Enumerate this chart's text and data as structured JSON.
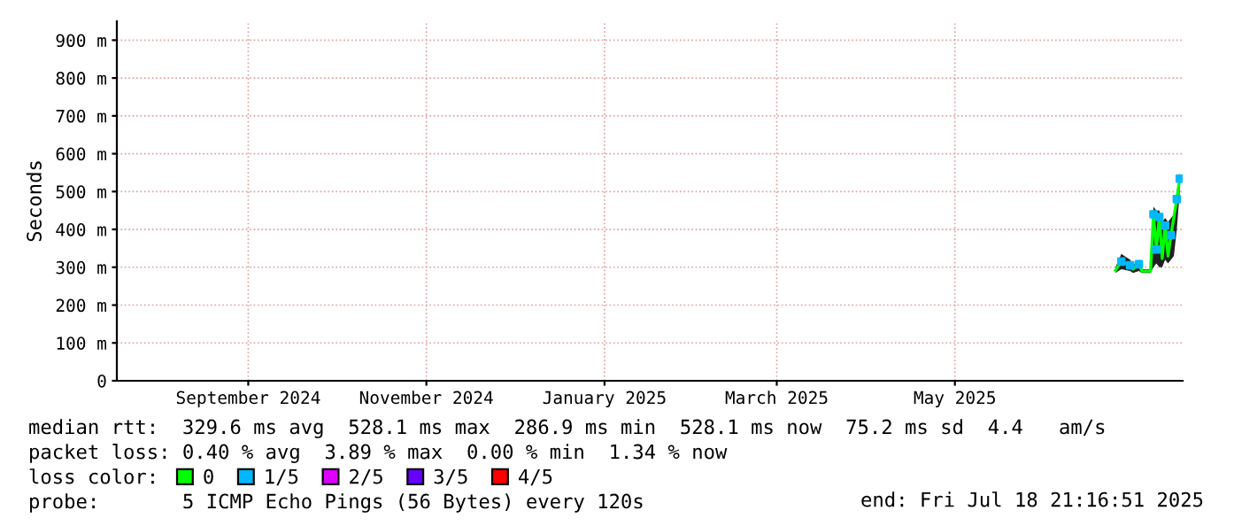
{
  "chart_data": {
    "type": "line",
    "ylabel": "Seconds",
    "legend_title": "loss color:",
    "legend": "bottom",
    "x": [
      "2025-06-25",
      "2025-06-27",
      "2025-06-30",
      "2025-07-01",
      "2025-07-03",
      "2025-07-04",
      "2025-07-07",
      "2025-07-08",
      "2025-07-09",
      "2025-07-10",
      "2025-07-11",
      "2025-07-12",
      "2025-07-13",
      "2025-07-14",
      "2025-07-15",
      "2025-07-16",
      "2025-07-17"
    ],
    "series": [
      {
        "name": "0",
        "color": "#00ff00",
        "values": [
          292,
          315,
          305,
          295,
          308,
          290,
          290,
          440,
          347,
          433,
          323,
          410,
          330,
          385,
          433,
          480,
          534
        ],
        "lower": [
          285,
          295,
          290,
          285,
          290,
          285,
          285,
          300,
          310,
          300,
          300,
          320,
          310,
          320,
          330,
          400,
          500
        ],
        "upper": [
          300,
          335,
          320,
          305,
          320,
          295,
          295,
          460,
          450,
          450,
          420,
          430,
          420,
          430,
          440,
          500,
          550
        ]
      },
      {
        "name": "1/5",
        "color": "#00b8ff",
        "type": "scatter",
        "values": [
          null,
          315,
          305,
          null,
          308,
          null,
          null,
          440,
          347,
          433,
          null,
          410,
          null,
          385,
          null,
          480,
          534
        ]
      },
      {
        "name": "2/5",
        "color": "#dd00ff",
        "type": "scatter",
        "values": [
          null,
          null,
          null,
          null,
          null,
          null,
          null,
          null,
          null,
          null,
          null,
          null,
          null,
          null,
          null,
          null,
          null
        ]
      },
      {
        "name": "3/5",
        "color": "#6600ff",
        "type": "scatter",
        "values": [
          null,
          null,
          null,
          null,
          null,
          null,
          null,
          null,
          null,
          null,
          null,
          null,
          null,
          null,
          null,
          null,
          null
        ]
      },
      {
        "name": "4/5",
        "color": "#ff0000",
        "type": "scatter",
        "values": [
          null,
          null,
          null,
          null,
          null,
          null,
          null,
          null,
          null,
          null,
          null,
          null,
          null,
          null,
          null,
          null,
          null
        ]
      }
    ],
    "xlim": [
      "2024-07-18",
      "2025-07-18"
    ],
    "xticks": [
      {
        "value": "2024-09-01",
        "label": "September 2024"
      },
      {
        "value": "2024-11-01",
        "label": "November 2024"
      },
      {
        "value": "2025-01-01",
        "label": "January 2025"
      },
      {
        "value": "2025-03-01",
        "label": "March 2025"
      },
      {
        "value": "2025-05-01",
        "label": "May 2025"
      }
    ],
    "ylim": [
      0,
      950
    ],
    "yticks": [
      0,
      {
        "value": 100,
        "label": "100 m"
      },
      {
        "value": 200,
        "label": "200 m"
      },
      {
        "value": 300,
        "label": "300 m"
      },
      {
        "value": 400,
        "label": "400 m"
      },
      {
        "value": 500,
        "label": "500 m"
      },
      {
        "value": 600,
        "label": "600 m"
      },
      {
        "value": 700,
        "label": "700 m"
      },
      {
        "value": 800,
        "label": "800 m"
      },
      {
        "value": 900,
        "label": "900 m"
      }
    ],
    "grid": true,
    "annotations": [
      "median rtt:  329.6 ms avg  528.1 ms max  286.9 ms min  528.1 ms now  75.2 ms sd  4.4   am/s",
      "packet loss: 0.40 % avg  3.89 % max  0.00 % min  1.34 % now",
      "probe:       5 ICMP Echo Pings (56 Bytes) every 120s",
      "end: Fri Jul 18 21:16:51 2025"
    ]
  }
}
